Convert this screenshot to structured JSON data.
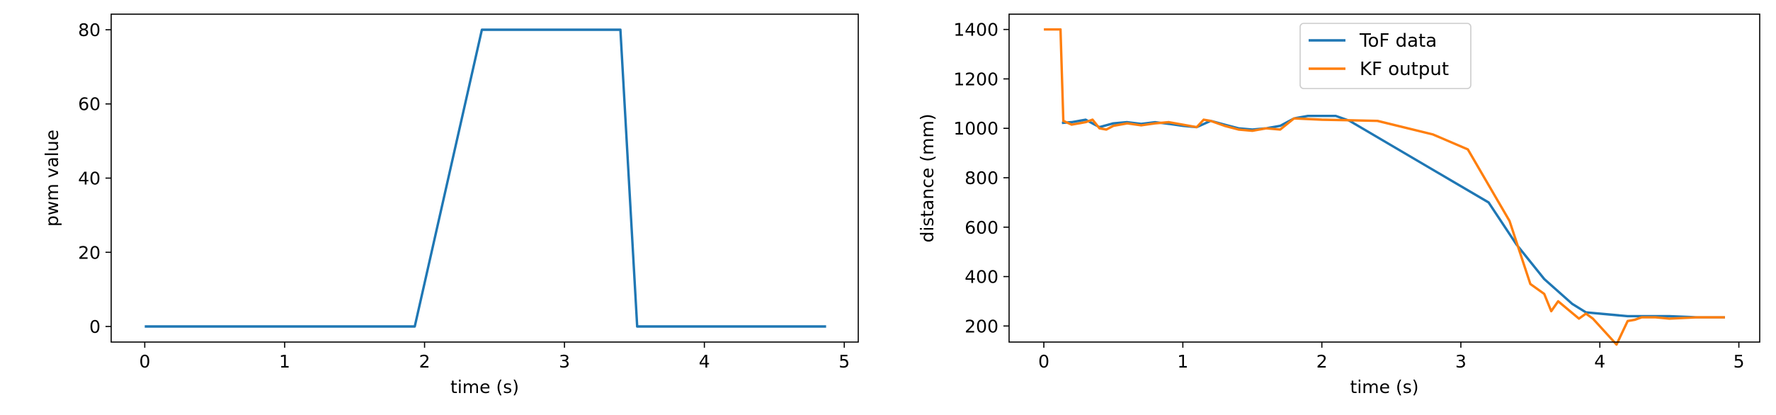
{
  "chart_data": [
    {
      "type": "line",
      "xlabel": "time (s)",
      "ylabel": "pwm value",
      "xlim": [
        -0.24,
        5.1
      ],
      "ylim": [
        -4.2,
        84.2
      ],
      "xticks": [
        0,
        1,
        2,
        3,
        4,
        5
      ],
      "yticks": [
        0,
        20,
        40,
        60,
        80
      ],
      "legend": null,
      "series": [
        {
          "color": "#1f77b4",
          "x": [
            0.0,
            1.93,
            2.41,
            3.4,
            3.52,
            4.87
          ],
          "y": [
            0,
            0,
            80,
            80,
            0,
            0
          ]
        }
      ]
    },
    {
      "type": "line",
      "xlabel": "time (s)",
      "ylabel": "distance (mm)",
      "xlim": [
        -0.25,
        5.15
      ],
      "ylim": [
        135,
        1462
      ],
      "xticks": [
        0,
        1,
        2,
        3,
        4,
        5
      ],
      "yticks": [
        200,
        400,
        600,
        800,
        1000,
        1200,
        1400
      ],
      "legend": "upper center",
      "series": [
        {
          "name": "ToF data",
          "color": "#1f77b4",
          "x": [
            0.13,
            0.2,
            0.3,
            0.4,
            0.5,
            0.6,
            0.7,
            0.8,
            0.9,
            1.0,
            1.1,
            1.2,
            1.3,
            1.4,
            1.5,
            1.6,
            1.7,
            1.8,
            1.9,
            2.0,
            2.1,
            2.2,
            3.2,
            3.4,
            3.6,
            3.8,
            3.9,
            4.2,
            4.5,
            4.7,
            4.9
          ],
          "y": [
            1022,
            1025,
            1035,
            1005,
            1020,
            1025,
            1018,
            1025,
            1018,
            1010,
            1005,
            1030,
            1015,
            1000,
            995,
            1000,
            1010,
            1040,
            1050,
            1050,
            1050,
            1030,
            700,
            530,
            390,
            290,
            255,
            240,
            240,
            235,
            235
          ]
        },
        {
          "name": "KF output",
          "color": "#ff7f0e",
          "x": [
            0.0,
            0.12,
            0.14,
            0.2,
            0.3,
            0.35,
            0.4,
            0.45,
            0.5,
            0.6,
            0.7,
            0.8,
            0.9,
            1.0,
            1.1,
            1.15,
            1.2,
            1.25,
            1.3,
            1.4,
            1.5,
            1.6,
            1.7,
            1.8,
            2.0,
            2.4,
            2.8,
            3.05,
            3.35,
            3.5,
            3.55,
            3.6,
            3.65,
            3.7,
            3.85,
            3.9,
            3.95,
            4.12,
            4.2,
            4.25,
            4.3,
            4.4,
            4.5,
            4.7,
            4.9
          ],
          "y": [
            1400,
            1400,
            1030,
            1015,
            1025,
            1035,
            1000,
            995,
            1010,
            1020,
            1012,
            1020,
            1025,
            1015,
            1005,
            1035,
            1030,
            1020,
            1010,
            995,
            990,
            1000,
            995,
            1040,
            1035,
            1030,
            975,
            915,
            625,
            370,
            350,
            330,
            260,
            300,
            230,
            250,
            230,
            125,
            220,
            225,
            235,
            235,
            230,
            235,
            235
          ]
        }
      ]
    }
  ]
}
